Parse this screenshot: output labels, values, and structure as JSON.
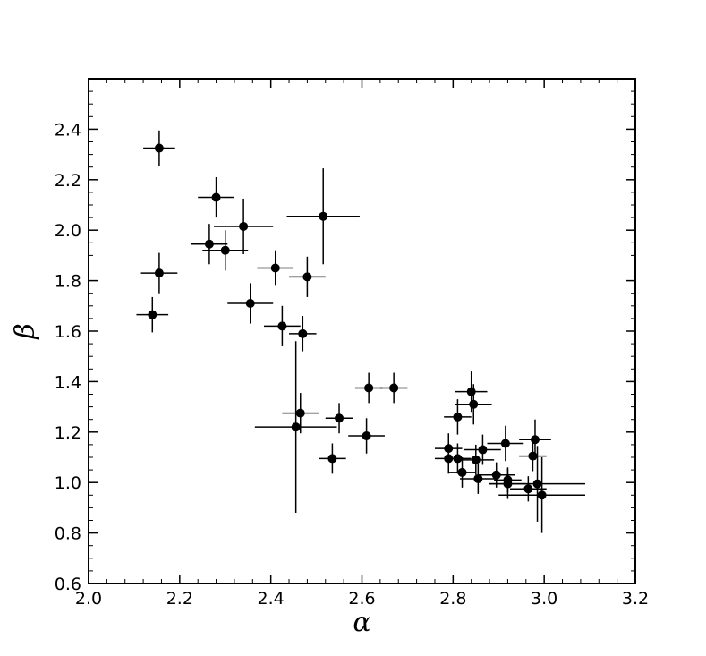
{
  "chart_data": {
    "type": "scatter",
    "title": "",
    "xlabel": "α",
    "ylabel": "β",
    "xlim": [
      2.0,
      3.2
    ],
    "ylim": [
      0.6,
      2.6
    ],
    "xticks": [
      "2.0",
      "2.2",
      "2.4",
      "2.6",
      "2.8",
      "3.0",
      "3.2"
    ],
    "yticks": [
      "0.6",
      "0.8",
      "1.0",
      "1.2",
      "1.4",
      "1.6",
      "1.8",
      "2.0",
      "2.2",
      "2.4"
    ],
    "grid": false,
    "legend": "none",
    "marker_color": "#000000",
    "points": [
      {
        "x": 2.155,
        "y": 2.325,
        "xerr": 0.035,
        "yerr": 0.07
      },
      {
        "x": 2.28,
        "y": 2.13,
        "xerr": 0.04,
        "yerr": 0.08
      },
      {
        "x": 2.265,
        "y": 1.945,
        "xerr": 0.04,
        "yerr": 0.08
      },
      {
        "x": 2.3,
        "y": 1.92,
        "xerr": 0.05,
        "yerr": 0.08
      },
      {
        "x": 2.34,
        "y": 2.015,
        "xerr": 0.065,
        "yerr": 0.11
      },
      {
        "x": 2.155,
        "y": 1.83,
        "xerr": 0.04,
        "yerr": 0.08
      },
      {
        "x": 2.14,
        "y": 1.665,
        "xerr": 0.035,
        "yerr": 0.07
      },
      {
        "x": 2.355,
        "y": 1.71,
        "xerr": 0.05,
        "yerr": 0.08
      },
      {
        "x": 2.41,
        "y": 1.85,
        "xerr": 0.04,
        "yerr": 0.07
      },
      {
        "x": 2.48,
        "y": 1.815,
        "xerr": 0.04,
        "yerr": 0.08
      },
      {
        "x": 2.515,
        "y": 2.055,
        "xerr": 0.08,
        "yerr": 0.19
      },
      {
        "x": 2.425,
        "y": 1.62,
        "xerr": 0.04,
        "yerr": 0.08
      },
      {
        "x": 2.47,
        "y": 1.59,
        "xerr": 0.03,
        "yerr": 0.07
      },
      {
        "x": 2.455,
        "y": 1.22,
        "xerr": 0.09,
        "yerr": 0.34
      },
      {
        "x": 2.465,
        "y": 1.275,
        "xerr": 0.04,
        "yerr": 0.08
      },
      {
        "x": 2.55,
        "y": 1.255,
        "xerr": 0.03,
        "yerr": 0.06
      },
      {
        "x": 2.535,
        "y": 1.095,
        "xerr": 0.03,
        "yerr": 0.06
      },
      {
        "x": 2.615,
        "y": 1.375,
        "xerr": 0.03,
        "yerr": 0.06
      },
      {
        "x": 2.67,
        "y": 1.375,
        "xerr": 0.03,
        "yerr": 0.06
      },
      {
        "x": 2.61,
        "y": 1.185,
        "xerr": 0.04,
        "yerr": 0.07
      },
      {
        "x": 2.84,
        "y": 1.36,
        "xerr": 0.035,
        "yerr": 0.08
      },
      {
        "x": 2.845,
        "y": 1.31,
        "xerr": 0.04,
        "yerr": 0.08
      },
      {
        "x": 2.81,
        "y": 1.26,
        "xerr": 0.03,
        "yerr": 0.07
      },
      {
        "x": 2.79,
        "y": 1.135,
        "xerr": 0.03,
        "yerr": 0.06
      },
      {
        "x": 2.79,
        "y": 1.095,
        "xerr": 0.03,
        "yerr": 0.06
      },
      {
        "x": 2.81,
        "y": 1.095,
        "xerr": 0.03,
        "yerr": 0.06
      },
      {
        "x": 2.82,
        "y": 1.04,
        "xerr": 0.03,
        "yerr": 0.06
      },
      {
        "x": 2.85,
        "y": 1.09,
        "xerr": 0.04,
        "yerr": 0.06
      },
      {
        "x": 2.865,
        "y": 1.13,
        "xerr": 0.04,
        "yerr": 0.06
      },
      {
        "x": 2.855,
        "y": 1.015,
        "xerr": 0.04,
        "yerr": 0.06
      },
      {
        "x": 2.895,
        "y": 1.03,
        "xerr": 0.04,
        "yerr": 0.05
      },
      {
        "x": 2.915,
        "y": 1.155,
        "xerr": 0.04,
        "yerr": 0.07
      },
      {
        "x": 2.92,
        "y": 1.01,
        "xerr": 0.03,
        "yerr": 0.05
      },
      {
        "x": 2.92,
        "y": 0.995,
        "xerr": 0.04,
        "yerr": 0.06
      },
      {
        "x": 2.965,
        "y": 0.975,
        "xerr": 0.04,
        "yerr": 0.05
      },
      {
        "x": 2.975,
        "y": 1.105,
        "xerr": 0.03,
        "yerr": 0.06
      },
      {
        "x": 2.98,
        "y": 1.17,
        "xerr": 0.035,
        "yerr": 0.08
      },
      {
        "x": 2.985,
        "y": 0.995,
        "xerr": 0.105,
        "yerr": 0.15
      },
      {
        "x": 2.995,
        "y": 0.95,
        "xerr": 0.095,
        "yerr": 0.15
      }
    ]
  }
}
